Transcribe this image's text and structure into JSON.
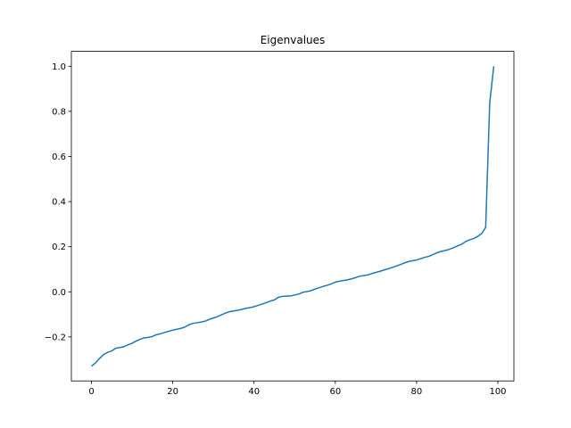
{
  "chart_data": {
    "type": "line",
    "title": "Eigenvalues",
    "x": [
      0,
      1,
      2,
      3,
      4,
      5,
      6,
      7,
      8,
      9,
      10,
      11,
      12,
      13,
      14,
      15,
      16,
      17,
      18,
      19,
      20,
      21,
      22,
      23,
      24,
      25,
      26,
      27,
      28,
      29,
      30,
      31,
      32,
      33,
      34,
      35,
      36,
      37,
      38,
      39,
      40,
      41,
      42,
      43,
      44,
      45,
      46,
      47,
      48,
      49,
      50,
      51,
      52,
      53,
      54,
      55,
      56,
      57,
      58,
      59,
      60,
      61,
      62,
      63,
      64,
      65,
      66,
      67,
      68,
      69,
      70,
      71,
      72,
      73,
      74,
      75,
      76,
      77,
      78,
      79,
      80,
      81,
      82,
      83,
      84,
      85,
      86,
      87,
      88,
      89,
      90,
      91,
      92,
      93,
      94,
      95,
      96,
      97,
      98,
      99
    ],
    "series": [
      {
        "color": "#1f77b4",
        "values": [
          -0.33,
          -0.315,
          -0.295,
          -0.278,
          -0.268,
          -0.262,
          -0.25,
          -0.247,
          -0.243,
          -0.235,
          -0.228,
          -0.218,
          -0.21,
          -0.204,
          -0.202,
          -0.198,
          -0.19,
          -0.186,
          -0.18,
          -0.175,
          -0.17,
          -0.166,
          -0.162,
          -0.156,
          -0.146,
          -0.14,
          -0.137,
          -0.134,
          -0.13,
          -0.122,
          -0.116,
          -0.11,
          -0.102,
          -0.094,
          -0.088,
          -0.085,
          -0.082,
          -0.078,
          -0.073,
          -0.07,
          -0.066,
          -0.06,
          -0.054,
          -0.048,
          -0.041,
          -0.036,
          -0.024,
          -0.02,
          -0.019,
          -0.018,
          -0.014,
          -0.01,
          -0.002,
          0.001,
          0.005,
          0.012,
          0.018,
          0.024,
          0.029,
          0.035,
          0.043,
          0.047,
          0.05,
          0.053,
          0.058,
          0.063,
          0.069,
          0.072,
          0.075,
          0.081,
          0.086,
          0.091,
          0.097,
          0.102,
          0.108,
          0.114,
          0.121,
          0.128,
          0.134,
          0.138,
          0.141,
          0.147,
          0.153,
          0.157,
          0.165,
          0.173,
          0.179,
          0.183,
          0.188,
          0.195,
          0.203,
          0.21,
          0.222,
          0.23,
          0.236,
          0.245,
          0.258,
          0.285,
          0.838,
          1.0
        ]
      }
    ],
    "xlim": [
      -4.95,
      103.95
    ],
    "ylim": [
      -0.395,
      1.066
    ],
    "xticks": [
      0,
      20,
      40,
      60,
      80,
      100
    ],
    "yticks": [
      {
        "value": -0.2,
        "label": "−0.2"
      },
      {
        "value": 0,
        "label": "0.0"
      },
      {
        "value": 0.2,
        "label": "0.2"
      },
      {
        "value": 0.4,
        "label": "0.4"
      },
      {
        "value": 0.6,
        "label": "0.6"
      },
      {
        "value": 0.8,
        "label": "0.8"
      },
      {
        "value": 1,
        "label": "1.0"
      }
    ],
    "grid": false
  }
}
